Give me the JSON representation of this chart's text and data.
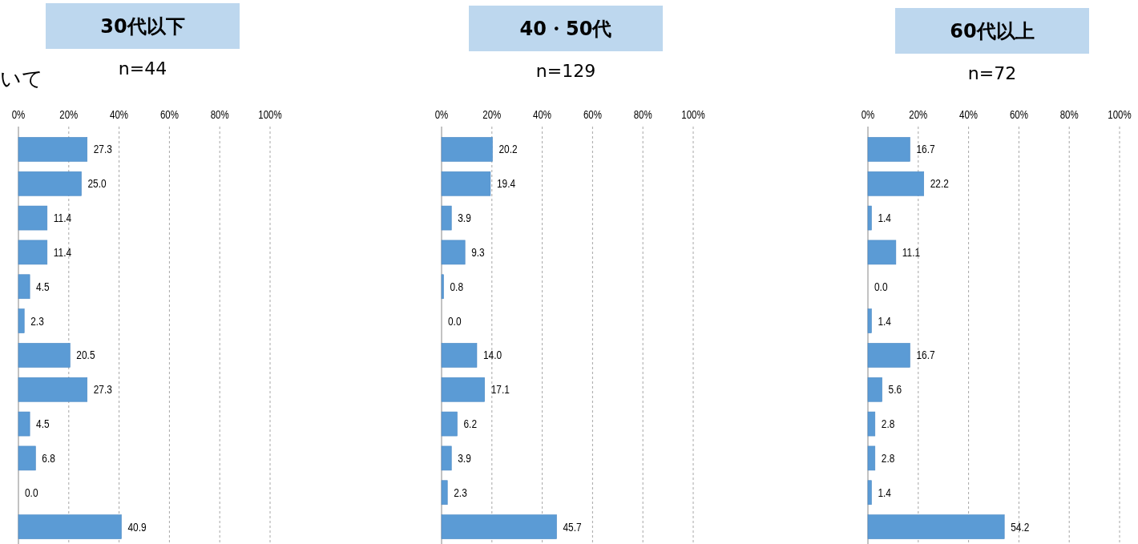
{
  "chart_data": [
    {
      "type": "bar",
      "orientation": "horizontal",
      "title": "30代以下",
      "subtitle": "n=44",
      "annotations": [
        "いて"
      ],
      "categories": [
        null,
        null,
        null,
        null,
        null,
        null,
        null,
        null,
        null,
        null,
        null,
        null
      ],
      "values": [
        27.3,
        25.0,
        11.4,
        11.4,
        4.5,
        2.3,
        20.5,
        27.3,
        4.5,
        6.8,
        0.0,
        40.9
      ],
      "value_labels": [
        "27.3",
        "25.0",
        "11.4",
        "11.4",
        "4.5",
        "2.3",
        "20.5",
        "27.3",
        "4.5",
        "6.8",
        "0.0",
        "40.9"
      ],
      "color": "#5b9bd5",
      "xlim": [
        0,
        100
      ],
      "xticks": [
        {
          "value": 0,
          "label": "0%"
        },
        {
          "value": 20,
          "label": "20%"
        },
        {
          "value": 40,
          "label": "40%"
        },
        {
          "value": 60,
          "label": "60%"
        },
        {
          "value": 80,
          "label": "80%"
        },
        {
          "value": 100,
          "label": "100%"
        }
      ],
      "grid": "x"
    },
    {
      "type": "bar",
      "orientation": "horizontal",
      "title": "40・50代",
      "subtitle": "n=129",
      "categories": [
        null,
        null,
        null,
        null,
        null,
        null,
        null,
        null,
        null,
        null,
        null,
        null
      ],
      "values": [
        20.2,
        19.4,
        3.9,
        9.3,
        0.8,
        0.0,
        14.0,
        17.1,
        6.2,
        3.9,
        2.3,
        45.7
      ],
      "value_labels": [
        "20.2",
        "19.4",
        "3.9",
        "9.3",
        "0.8",
        "0.0",
        "14.0",
        "17.1",
        "6.2",
        "3.9",
        "2.3",
        "45.7"
      ],
      "color": "#5b9bd5",
      "xlim": [
        0,
        100
      ],
      "xticks": [
        {
          "value": 0,
          "label": "0%"
        },
        {
          "value": 20,
          "label": "20%"
        },
        {
          "value": 40,
          "label": "40%"
        },
        {
          "value": 60,
          "label": "60%"
        },
        {
          "value": 80,
          "label": "80%"
        },
        {
          "value": 100,
          "label": "100%"
        }
      ],
      "grid": "x"
    },
    {
      "type": "bar",
      "orientation": "horizontal",
      "title": "60代以上",
      "subtitle": "n=72",
      "categories": [
        null,
        null,
        null,
        null,
        null,
        null,
        null,
        null,
        null,
        null,
        null,
        null
      ],
      "values": [
        16.7,
        22.2,
        1.4,
        11.1,
        0.0,
        1.4,
        16.7,
        5.6,
        2.8,
        2.8,
        1.4,
        54.2
      ],
      "value_labels": [
        "16.7",
        "22.2",
        "1.4",
        "11.1",
        "0.0",
        "1.4",
        "16.7",
        "5.6",
        "2.8",
        "2.8",
        "1.4",
        "54.2"
      ],
      "color": "#5b9bd5",
      "xlim": [
        0,
        100
      ],
      "xticks": [
        {
          "value": 0,
          "label": "0%"
        },
        {
          "value": 20,
          "label": "20%"
        },
        {
          "value": 40,
          "label": "40%"
        },
        {
          "value": 60,
          "label": "60%"
        },
        {
          "value": 80,
          "label": "80%"
        },
        {
          "value": 100,
          "label": "100%"
        }
      ],
      "grid": "x"
    }
  ]
}
